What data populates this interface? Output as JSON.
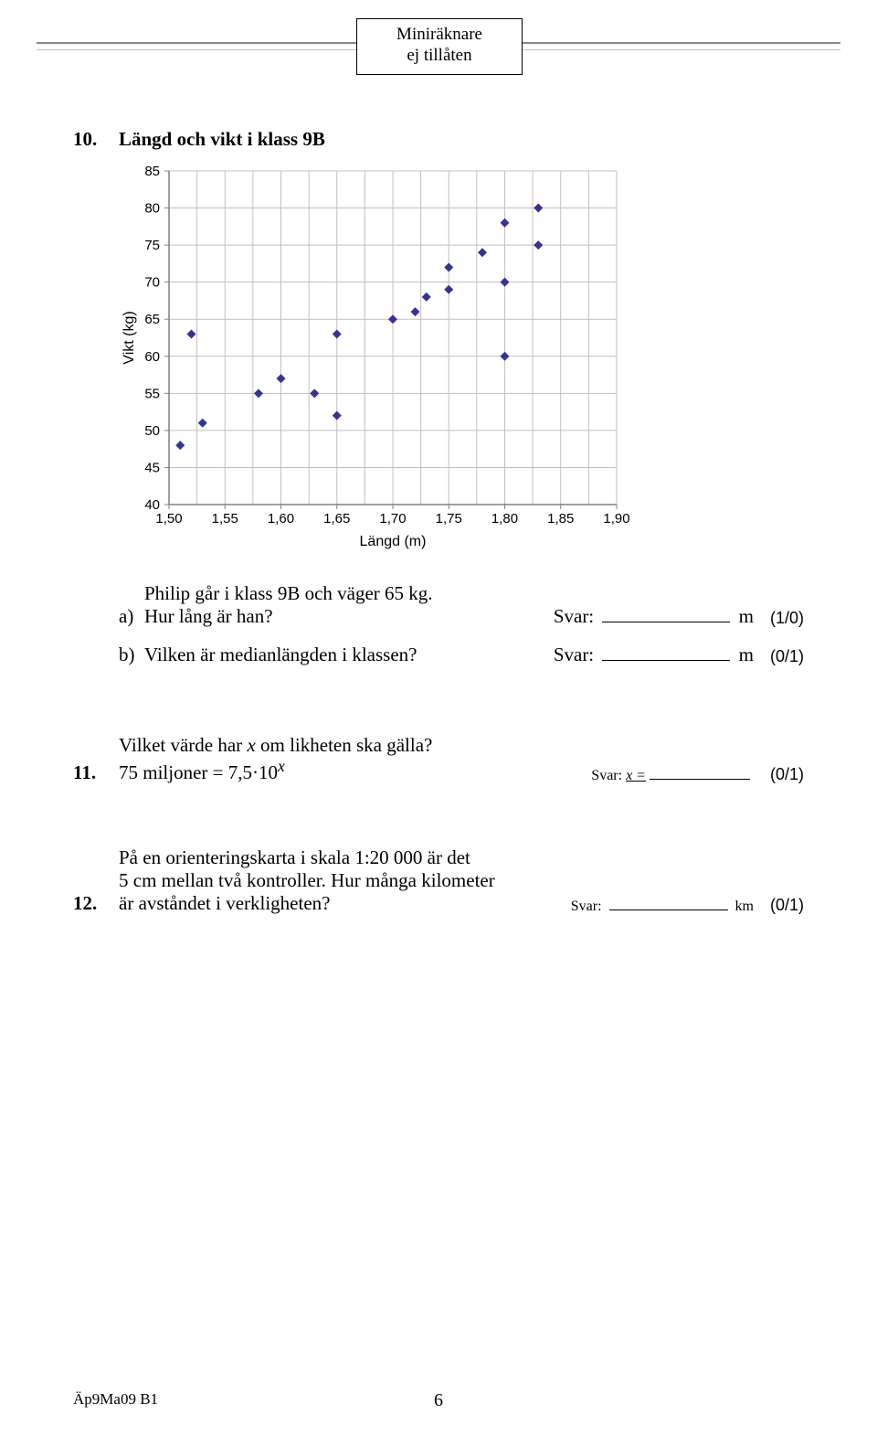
{
  "header": {
    "box_line1": "Miniräknare",
    "box_line2": "ej tillåten"
  },
  "q10": {
    "number": "10.",
    "chart": {
      "title": "Längd och vikt i klass 9B",
      "type": "scatter",
      "xlabel": "Längd (m)",
      "ylabel": "Vikt (kg)",
      "label_font": "Arial",
      "label_fontsize": 15,
      "title_fontsize": 18,
      "xlim": [
        1.5,
        1.9
      ],
      "ylim": [
        40,
        85
      ],
      "xticks": [
        1.5,
        1.55,
        1.6,
        1.65,
        1.7,
        1.75,
        1.8,
        1.85,
        1.9
      ],
      "xtick_labels": [
        "1,50",
        "1,55",
        "1,60",
        "1,65",
        "1,70",
        "1,75",
        "1,80",
        "1,85",
        "1,90"
      ],
      "yticks": [
        40,
        45,
        50,
        55,
        60,
        65,
        70,
        75,
        80,
        85
      ],
      "x_grid_step": 0.025,
      "y_grid_step": 5,
      "background_color": "#ffffff",
      "grid_color": "#c0c0c0",
      "axis_color": "#808080",
      "marker_color": "#333399",
      "marker_size": 5,
      "tick_color": "#000000",
      "points": [
        [
          1.51,
          48
        ],
        [
          1.52,
          63
        ],
        [
          1.53,
          51
        ],
        [
          1.58,
          55
        ],
        [
          1.6,
          57
        ],
        [
          1.63,
          55
        ],
        [
          1.65,
          52
        ],
        [
          1.65,
          63
        ],
        [
          1.7,
          65
        ],
        [
          1.72,
          66
        ],
        [
          1.73,
          68
        ],
        [
          1.75,
          69
        ],
        [
          1.75,
          72
        ],
        [
          1.78,
          74
        ],
        [
          1.8,
          60
        ],
        [
          1.8,
          70
        ],
        [
          1.8,
          78
        ],
        [
          1.83,
          75
        ],
        [
          1.83,
          80
        ]
      ]
    },
    "a": {
      "label": "a)",
      "line1": "Philip går i klass 9B och väger 65 kg.",
      "line2": "Hur lång är han?",
      "svar": "Svar:",
      "unit": "m",
      "score": "(1/0)"
    },
    "b": {
      "label": "b)",
      "text": "Vilken är medianlängden i klassen?",
      "svar": "Svar:",
      "unit": "m",
      "score": "(0/1)"
    }
  },
  "q11": {
    "number": "11.",
    "line1_pre": "Vilket värde har ",
    "line1_var": "x",
    "line1_post": " om likheten ska gälla?",
    "eq_pre": "75 miljoner = 7,5·10",
    "eq_sup": "x",
    "svar": "Svar:",
    "svar_var": "x =",
    "score": "(0/1)"
  },
  "q12": {
    "number": "12.",
    "line1": "På en orienteringskarta i skala 1:20 000 är det",
    "line2": "5 cm mellan två kontroller. Hur många kilometer",
    "line3": "är avståndet i verkligheten?",
    "svar": "Svar:",
    "unit": "km",
    "score": "(0/1)"
  },
  "footer": {
    "code": "Äp9Ma09 B1",
    "page": "6"
  }
}
